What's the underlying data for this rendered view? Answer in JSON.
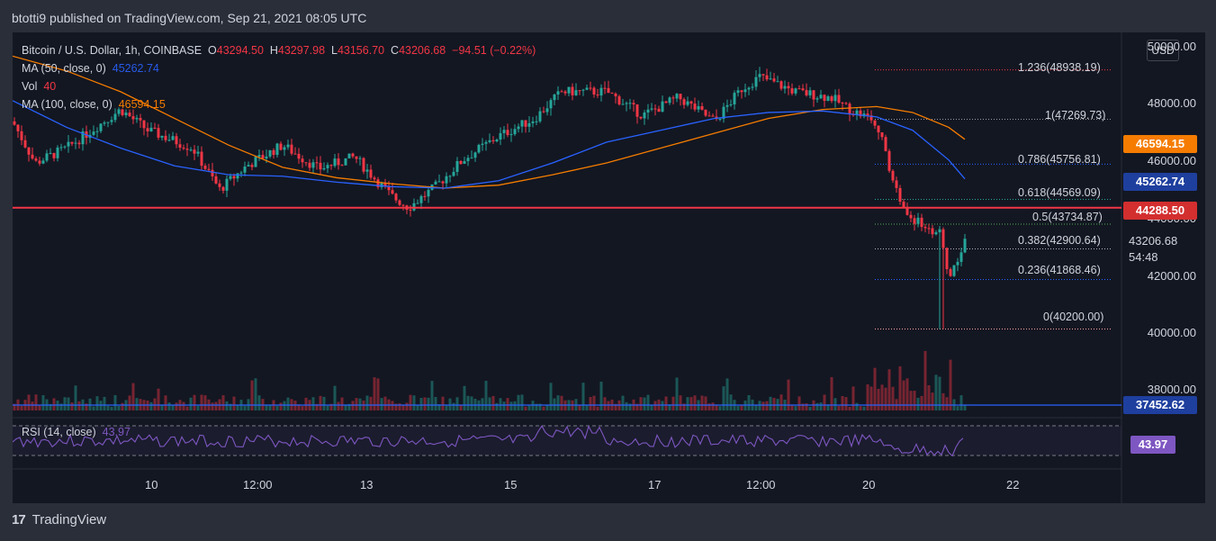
{
  "header": {
    "published": "btotti9 published on TradingView.com, Sep 21, 2021 08:05 UTC"
  },
  "legend": {
    "symbol": "Bitcoin / U.S. Dollar, 1h, COINBASE",
    "o_key": "O",
    "o_val": "43294.50",
    "h_key": "H",
    "h_val": "43297.98",
    "l_key": "L",
    "l_val": "43156.70",
    "c_key": "C",
    "c_val": "43206.68",
    "change": "−94.51 (−0.22%)",
    "ma50_label": "MA (50, close, 0)",
    "ma50_val": "45262.74",
    "vol_label": "Vol",
    "vol_val": "40",
    "ma100_label": "MA (100, close, 0)",
    "ma100_val": "46594.15"
  },
  "rsi": {
    "label": "RSI (14, close)",
    "value": "43.97"
  },
  "currency_button": "USD",
  "price_axis": [
    "50000.00",
    "48000.00",
    "46000.00",
    "44000.00",
    "42000.00",
    "40000.00",
    "38000.00"
  ],
  "price_tags": {
    "ma100": "46594.15",
    "ma50": "45262.74",
    "support": "44288.50",
    "last": "43206.68",
    "countdown": "54:48",
    "volume_ma": "37452.62",
    "rsi": "43.97"
  },
  "fib_levels": [
    {
      "label": "1.236(48938.19)",
      "color": "#f23645"
    },
    {
      "label": "1(47269.73)",
      "color": "#9598a1"
    },
    {
      "label": "0.786(45756.81)",
      "color": "#2962ff"
    },
    {
      "label": "0.618(44569.09)",
      "color": "#26a69a"
    },
    {
      "label": "0.5(43734.87)",
      "color": "#4caf50"
    },
    {
      "label": "0.382(42900.64)",
      "color": "#b2b5be"
    },
    {
      "label": "0.236(41868.46)",
      "color": "#2962ff"
    },
    {
      "label": "0(40200.00)",
      "color": "#f7a5a5"
    }
  ],
  "time_axis": [
    "10",
    "12:00",
    "13",
    "15",
    "17",
    "12:00",
    "20",
    "22"
  ],
  "footer": {
    "brand": "TradingView",
    "logo": "17"
  },
  "colors": {
    "up": "#26a69a",
    "down": "#f23645",
    "ma50": "#2962ff",
    "ma100": "#f57c00",
    "support": "#f23645",
    "rsi": "#7e57c2",
    "background": "#131722"
  },
  "chart_data": {
    "type": "candlestick",
    "symbol": "Bitcoin / U.S. Dollar",
    "timeframe": "1h",
    "ylim": [
      37300,
      50200
    ],
    "horizontal_lines": [
      44288.5,
      37452.62
    ],
    "ma50_path": [
      [
        0,
        47900
      ],
      [
        60,
        47000
      ],
      [
        120,
        46300
      ],
      [
        180,
        45700
      ],
      [
        240,
        45400
      ],
      [
        300,
        45350
      ],
      [
        360,
        45150
      ],
      [
        420,
        45000
      ],
      [
        480,
        44950
      ],
      [
        540,
        45200
      ],
      [
        600,
        45800
      ],
      [
        660,
        46500
      ],
      [
        720,
        46900
      ],
      [
        780,
        47300
      ],
      [
        840,
        47500
      ],
      [
        900,
        47550
      ],
      [
        960,
        47350
      ],
      [
        1000,
        46900
      ],
      [
        1040,
        45900
      ],
      [
        1058,
        45262.74
      ]
    ],
    "ma100_path": [
      [
        0,
        49400
      ],
      [
        60,
        48900
      ],
      [
        120,
        48200
      ],
      [
        180,
        47300
      ],
      [
        240,
        46400
      ],
      [
        300,
        45650
      ],
      [
        360,
        45300
      ],
      [
        420,
        45100
      ],
      [
        480,
        44950
      ],
      [
        540,
        45050
      ],
      [
        600,
        45400
      ],
      [
        660,
        45800
      ],
      [
        720,
        46300
      ],
      [
        780,
        46800
      ],
      [
        840,
        47300
      ],
      [
        900,
        47600
      ],
      [
        960,
        47700
      ],
      [
        1000,
        47500
      ],
      [
        1040,
        47000
      ],
      [
        1058,
        46594.15
      ]
    ],
    "rsi_range": [
      30,
      70
    ]
  }
}
